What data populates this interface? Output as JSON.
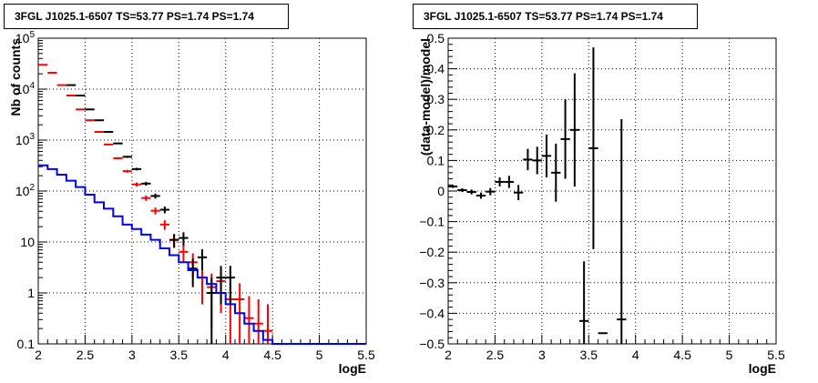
{
  "chart_data": [
    {
      "type": "line",
      "title": "3FGL J1025.1-6507 TS=53.77 PS=1.74 PS=1.74",
      "xlabel": "logE",
      "ylabel": "Nb of counts",
      "xlim": [
        2,
        5.5
      ],
      "ylim": [
        0.1,
        100000
      ],
      "yscale": "log",
      "grid": true,
      "x_ticks": [
        "2",
        "2.5",
        "3",
        "3.5",
        "4",
        "4.5",
        "5",
        "5.5"
      ],
      "y_ticks": [
        "0.1",
        "1",
        "10",
        "10^2",
        "10^3",
        "10^4",
        "10^5"
      ],
      "series": [
        {
          "color": "#ff0000",
          "kind": "points",
          "x": [
            2.05,
            2.15,
            2.25,
            2.35,
            2.45,
            2.55,
            2.65,
            2.75,
            2.85,
            2.95,
            3.05,
            3.15,
            3.25,
            3.35,
            3.45,
            3.55,
            3.65,
            3.75,
            3.85,
            3.95,
            4.05,
            4.15,
            4.25,
            4.35,
            4.45
          ],
          "y": [
            30000,
            21000,
            12000,
            7500,
            4000,
            2450,
            1450,
            820,
            440,
            245,
            135,
            73,
            41,
            22,
            11,
            6.4,
            4.0,
            2.0,
            1.3,
            1.7,
            0.75,
            0.75,
            0.32,
            0.25,
            0.18
          ],
          "yerr": [
            170,
            150,
            110,
            90,
            63,
            50,
            38,
            29,
            21,
            16,
            12,
            8.5,
            6.4,
            4.7,
            3.3,
            2.5,
            2.0,
            1.4,
            1.1,
            1.3,
            0.8,
            0.8,
            0.55,
            0.5,
            0.42
          ]
        },
        {
          "color": "#000000",
          "kind": "points",
          "x": [
            2.35,
            2.45,
            2.55,
            2.65,
            2.75,
            2.85,
            2.95,
            3.05,
            3.15,
            3.25,
            3.35,
            3.45,
            3.55,
            3.65,
            3.75,
            3.85,
            3.95,
            4.05
          ],
          "y": [
            12000,
            7500,
            4000,
            2450,
            1450,
            860,
            470,
            270,
            140,
            80,
            43,
            11,
            12,
            3,
            5,
            1,
            2,
            2
          ],
          "yerr": [
            110,
            87,
            63,
            50,
            38,
            29,
            22,
            16,
            12,
            9,
            6.6,
            3.3,
            3.5,
            1.7,
            2.2,
            1,
            1.4,
            1.4
          ]
        },
        {
          "color": "#0000ff",
          "kind": "step",
          "x_edges": [
            2.0,
            2.1,
            2.2,
            2.3,
            2.4,
            2.5,
            2.6,
            2.7,
            2.8,
            2.9,
            3.0,
            3.1,
            3.2,
            3.3,
            3.4,
            3.5,
            3.6,
            3.7,
            3.8,
            3.9,
            4.0,
            4.1,
            4.2,
            4.3,
            4.4,
            4.5,
            5.5
          ],
          "y": [
            320,
            270,
            210,
            160,
            120,
            85,
            60,
            45,
            32,
            22,
            18,
            14,
            11,
            7.5,
            5.5,
            4,
            2.8,
            2.0,
            1.5,
            1.0,
            0.6,
            0.4,
            0.25,
            0.18,
            0.12,
            0.1
          ]
        }
      ]
    },
    {
      "type": "scatter",
      "title": "3FGL J1025.1-6507 TS=53.77 PS=1.74 PS=1.74",
      "xlabel": "logE",
      "ylabel": "(data-model)/model",
      "xlim": [
        2,
        5.5
      ],
      "ylim": [
        -0.5,
        0.5
      ],
      "grid": true,
      "x_ticks": [
        "2",
        "2.5",
        "3",
        "3.5",
        "4",
        "4.5",
        "5",
        "5.5"
      ],
      "y_ticks": [
        "-0.5",
        "-0.4",
        "-0.3",
        "-0.2",
        "-0.1",
        "0",
        "0.1",
        "0.2",
        "0.3",
        "0.4",
        "0.5"
      ],
      "series": [
        {
          "color": "#000000",
          "x": [
            2.05,
            2.15,
            2.25,
            2.35,
            2.45,
            2.55,
            2.65,
            2.75,
            2.85,
            2.95,
            3.05,
            3.15,
            3.25,
            3.35,
            3.45,
            3.55,
            3.65,
            3.85
          ],
          "y": [
            0.015,
            0.003,
            -0.003,
            -0.015,
            -0.002,
            0.03,
            0.03,
            -0.005,
            0.103,
            0.1,
            0.115,
            0.06,
            0.17,
            0.2,
            -0.425,
            0.14,
            -0.465,
            -0.42
          ],
          "yerr": [
            0.005,
            0.006,
            0.008,
            0.01,
            0.012,
            0.015,
            0.02,
            0.025,
            0.035,
            0.045,
            0.07,
            0.095,
            0.13,
            0.185,
            0.195,
            0.33,
            0,
            0.655
          ]
        }
      ]
    }
  ]
}
